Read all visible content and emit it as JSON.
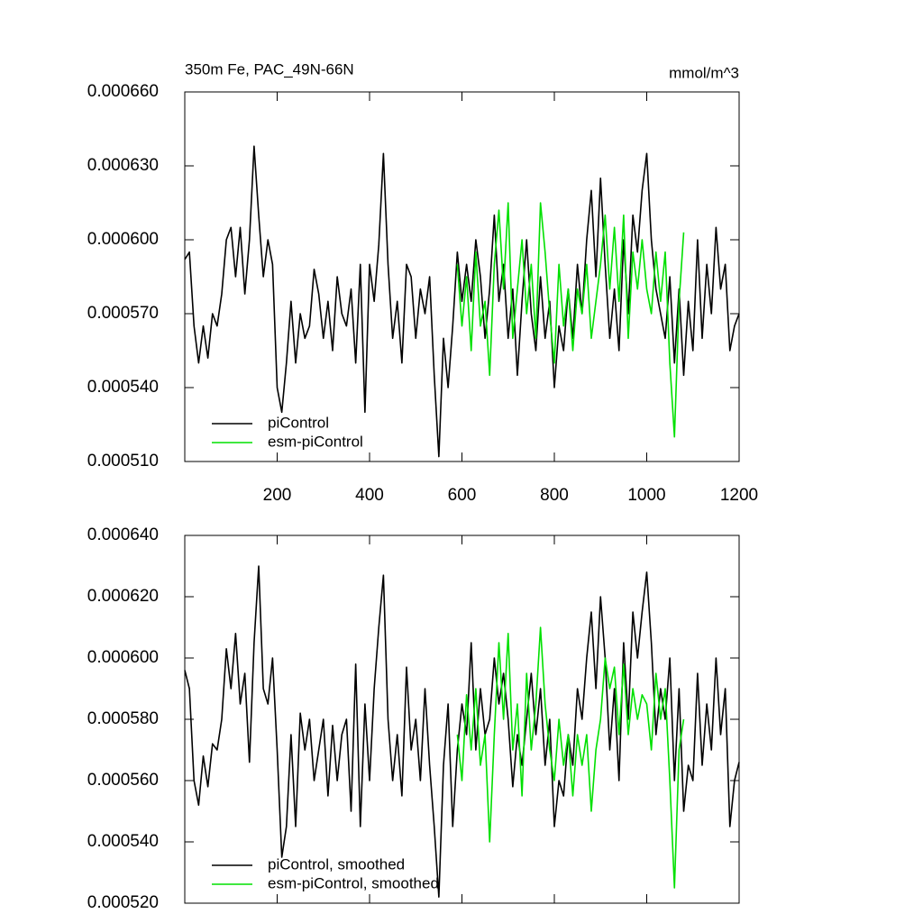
{
  "chart_data": [
    {
      "type": "line",
      "title": "350m Fe, PAC_49N-66N",
      "units": "mmol/m^3",
      "xlim": [
        0,
        1200
      ],
      "xticks": [
        200,
        400,
        600,
        800,
        1000,
        1200
      ],
      "ylim": [
        0.00051,
        0.00066
      ],
      "yticks": [
        {
          "value": 0.00051,
          "label": "0.000510"
        },
        {
          "value": 0.00054,
          "label": "0.000540"
        },
        {
          "value": 0.00057,
          "label": "0.000570"
        },
        {
          "value": 0.0006,
          "label": "0.000600"
        },
        {
          "value": 0.00063,
          "label": "0.000630"
        },
        {
          "value": 0.00066,
          "label": "0.000660"
        }
      ],
      "legend": "lower left",
      "series": [
        {
          "name": "piControl",
          "color": "#000000",
          "x": [
            0,
            10,
            20,
            30,
            40,
            50,
            60,
            70,
            80,
            90,
            100,
            110,
            120,
            130,
            140,
            150,
            160,
            170,
            180,
            190,
            200,
            210,
            220,
            230,
            240,
            250,
            260,
            270,
            280,
            290,
            300,
            310,
            320,
            330,
            340,
            350,
            360,
            370,
            380,
            390,
            400,
            410,
            420,
            430,
            440,
            450,
            460,
            470,
            480,
            490,
            500,
            510,
            520,
            530,
            540,
            550,
            560,
            570,
            580,
            590,
            600,
            610,
            620,
            630,
            640,
            650,
            660,
            670,
            680,
            690,
            700,
            710,
            720,
            730,
            740,
            750,
            760,
            770,
            780,
            790,
            800,
            810,
            820,
            830,
            840,
            850,
            860,
            870,
            880,
            890,
            900,
            910,
            920,
            930,
            940,
            950,
            960,
            970,
            980,
            990,
            1000,
            1010,
            1020,
            1030,
            1040,
            1050,
            1060,
            1070,
            1080,
            1090,
            1100,
            1110,
            1120,
            1130,
            1140,
            1150,
            1160,
            1170,
            1180,
            1190,
            1200
          ],
          "values": [
            0.000592,
            0.000595,
            0.000565,
            0.00055,
            0.000565,
            0.000552,
            0.00057,
            0.000565,
            0.000578,
            0.0006,
            0.000605,
            0.000585,
            0.000605,
            0.000578,
            0.0006,
            0.000638,
            0.00061,
            0.000585,
            0.0006,
            0.00059,
            0.00054,
            0.00053,
            0.00055,
            0.000575,
            0.00055,
            0.00057,
            0.00056,
            0.000565,
            0.000588,
            0.000578,
            0.00056,
            0.000575,
            0.000555,
            0.000585,
            0.00057,
            0.000565,
            0.00058,
            0.00055,
            0.00059,
            0.00053,
            0.00059,
            0.000575,
            0.000598,
            0.000635,
            0.00059,
            0.00056,
            0.000575,
            0.00055,
            0.00059,
            0.000585,
            0.00056,
            0.00058,
            0.00057,
            0.000585,
            0.000545,
            0.000512,
            0.00056,
            0.00054,
            0.000565,
            0.000595,
            0.000575,
            0.00059,
            0.000575,
            0.0006,
            0.000585,
            0.00056,
            0.00058,
            0.00061,
            0.000575,
            0.00059,
            0.00056,
            0.00058,
            0.000545,
            0.000575,
            0.0006,
            0.00057,
            0.000555,
            0.000585,
            0.00056,
            0.000575,
            0.00054,
            0.000565,
            0.000555,
            0.00058,
            0.00056,
            0.00059,
            0.00057,
            0.0006,
            0.00062,
            0.000585,
            0.000625,
            0.00059,
            0.00056,
            0.00058,
            0.000555,
            0.0006,
            0.00057,
            0.00061,
            0.000595,
            0.00062,
            0.000635,
            0.0006,
            0.00058,
            0.00057,
            0.00056,
            0.000585,
            0.00055,
            0.00058,
            0.000545,
            0.000575,
            0.000555,
            0.0006,
            0.00056,
            0.00059,
            0.00057,
            0.000605,
            0.00058,
            0.00059,
            0.000555,
            0.000565,
            0.00057
          ]
        },
        {
          "name": "esm-piControl",
          "color": "#00e000",
          "x": [
            590,
            600,
            610,
            620,
            630,
            640,
            650,
            660,
            670,
            680,
            690,
            700,
            710,
            720,
            730,
            740,
            750,
            760,
            770,
            780,
            790,
            800,
            810,
            820,
            830,
            840,
            850,
            860,
            870,
            880,
            890,
            900,
            910,
            920,
            930,
            940,
            950,
            960,
            970,
            980,
            990,
            1000,
            1010,
            1020,
            1030,
            1040,
            1050,
            1060,
            1070,
            1080
          ],
          "values": [
            0.00059,
            0.000565,
            0.000585,
            0.000555,
            0.000595,
            0.000565,
            0.000575,
            0.000545,
            0.00059,
            0.000612,
            0.00058,
            0.000615,
            0.00056,
            0.00058,
            0.0006,
            0.00057,
            0.00059,
            0.00056,
            0.000615,
            0.000595,
            0.00057,
            0.00055,
            0.00059,
            0.000565,
            0.00058,
            0.000555,
            0.00058,
            0.00057,
            0.00059,
            0.00056,
            0.000575,
            0.00059,
            0.00061,
            0.00058,
            0.000605,
            0.000575,
            0.00061,
            0.00056,
            0.000595,
            0.00058,
            0.0006,
            0.00058,
            0.00057,
            0.000595,
            0.000575,
            0.000595,
            0.00055,
            0.00052,
            0.000575,
            0.000603
          ]
        }
      ]
    },
    {
      "type": "line",
      "xlim": [
        0,
        1200
      ],
      "xticks": [
        200,
        400,
        600,
        800,
        1000,
        1200
      ],
      "ylim": [
        0.00052,
        0.00064
      ],
      "yticks": [
        {
          "value": 0.00052,
          "label": "0.000520"
        },
        {
          "value": 0.00054,
          "label": "0.000540"
        },
        {
          "value": 0.00056,
          "label": "0.000560"
        },
        {
          "value": 0.00058,
          "label": "0.000580"
        },
        {
          "value": 0.0006,
          "label": "0.000600"
        },
        {
          "value": 0.00062,
          "label": "0.000620"
        },
        {
          "value": 0.00064,
          "label": "0.000640"
        }
      ],
      "legend": "lower left",
      "series": [
        {
          "name": "piControl, smoothed",
          "color": "#000000",
          "x": [
            0,
            10,
            20,
            30,
            40,
            50,
            60,
            70,
            80,
            90,
            100,
            110,
            120,
            130,
            140,
            150,
            160,
            170,
            180,
            190,
            200,
            210,
            220,
            230,
            240,
            250,
            260,
            270,
            280,
            290,
            300,
            310,
            320,
            330,
            340,
            350,
            360,
            370,
            380,
            390,
            400,
            410,
            420,
            430,
            440,
            450,
            460,
            470,
            480,
            490,
            500,
            510,
            520,
            530,
            540,
            550,
            560,
            570,
            580,
            590,
            600,
            610,
            620,
            630,
            640,
            650,
            660,
            670,
            680,
            690,
            700,
            710,
            720,
            730,
            740,
            750,
            760,
            770,
            780,
            790,
            800,
            810,
            820,
            830,
            840,
            850,
            860,
            870,
            880,
            890,
            900,
            910,
            920,
            930,
            940,
            950,
            960,
            970,
            980,
            990,
            1000,
            1010,
            1020,
            1030,
            1040,
            1050,
            1060,
            1070,
            1080,
            1090,
            1100,
            1110,
            1120,
            1130,
            1140,
            1150,
            1160,
            1170,
            1180,
            1190,
            1200
          ],
          "values": [
            0.000596,
            0.00059,
            0.00056,
            0.000552,
            0.000568,
            0.000558,
            0.000572,
            0.00057,
            0.00058,
            0.000603,
            0.00059,
            0.000608,
            0.000585,
            0.000595,
            0.000566,
            0.000605,
            0.00063,
            0.00059,
            0.000585,
            0.0006,
            0.00057,
            0.000535,
            0.000545,
            0.000575,
            0.000545,
            0.000582,
            0.00057,
            0.00058,
            0.00056,
            0.00057,
            0.00058,
            0.000555,
            0.000578,
            0.00056,
            0.000575,
            0.00058,
            0.00055,
            0.000598,
            0.000545,
            0.000585,
            0.00056,
            0.00059,
            0.00061,
            0.000627,
            0.00058,
            0.00056,
            0.000575,
            0.000555,
            0.000597,
            0.00057,
            0.00058,
            0.00056,
            0.00059,
            0.000565,
            0.000545,
            0.000522,
            0.000565,
            0.000585,
            0.000545,
            0.00057,
            0.000585,
            0.000575,
            0.000605,
            0.00057,
            0.00059,
            0.000575,
            0.00058,
            0.0006,
            0.000585,
            0.000595,
            0.00058,
            0.000558,
            0.000575,
            0.000565,
            0.00058,
            0.000595,
            0.000575,
            0.00059,
            0.000565,
            0.00058,
            0.000545,
            0.00056,
            0.000555,
            0.000575,
            0.000565,
            0.00059,
            0.00058,
            0.0006,
            0.000615,
            0.00059,
            0.00062,
            0.0006,
            0.00057,
            0.00059,
            0.00056,
            0.000605,
            0.00058,
            0.000615,
            0.0006,
            0.000615,
            0.000628,
            0.000605,
            0.000575,
            0.00059,
            0.00058,
            0.0006,
            0.00056,
            0.00059,
            0.00055,
            0.000565,
            0.00056,
            0.000595,
            0.000565,
            0.000585,
            0.00057,
            0.0006,
            0.000575,
            0.00059,
            0.000545,
            0.00056,
            0.000566
          ]
        },
        {
          "name": "esm-piControl, smoothed",
          "color": "#00e000",
          "x": [
            590,
            600,
            610,
            620,
            630,
            640,
            650,
            660,
            670,
            680,
            690,
            700,
            710,
            720,
            730,
            740,
            750,
            760,
            770,
            780,
            790,
            800,
            810,
            820,
            830,
            840,
            850,
            860,
            870,
            880,
            890,
            900,
            910,
            920,
            930,
            940,
            950,
            960,
            970,
            980,
            990,
            1000,
            1010,
            1020,
            1030,
            1040,
            1050,
            1060,
            1070,
            1080
          ],
          "values": [
            0.000575,
            0.00056,
            0.000588,
            0.00057,
            0.00059,
            0.000565,
            0.000575,
            0.00054,
            0.000575,
            0.000605,
            0.00058,
            0.000608,
            0.00057,
            0.000585,
            0.000555,
            0.000595,
            0.00057,
            0.000585,
            0.00061,
            0.000585,
            0.00057,
            0.00056,
            0.00058,
            0.000565,
            0.000575,
            0.000555,
            0.000575,
            0.000565,
            0.000575,
            0.00055,
            0.00057,
            0.00058,
            0.0006,
            0.00059,
            0.000597,
            0.000575,
            0.000598,
            0.000575,
            0.00059,
            0.00058,
            0.000588,
            0.000585,
            0.00057,
            0.000595,
            0.00058,
            0.00059,
            0.00056,
            0.000525,
            0.00057,
            0.00058
          ]
        }
      ]
    }
  ]
}
